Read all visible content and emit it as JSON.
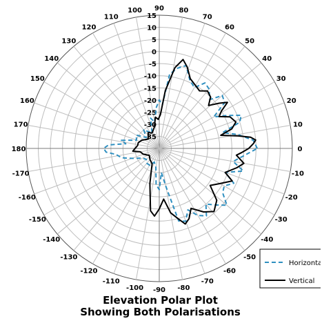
{
  "chart_data": {
    "type": "polar-line",
    "title": "Elevation Polar Plot",
    "subtitle": "Showing Both Polarisations",
    "angle_unit": "degrees",
    "radial_axis": {
      "min": -40,
      "max": 15,
      "step": 5,
      "tick_labels": [
        "15",
        "10",
        "5",
        "0",
        "-5",
        "-10",
        "-15",
        "-20",
        "-25",
        "-30",
        "-35"
      ]
    },
    "angle_axis": {
      "tick_labels": [
        "90",
        "80",
        "70",
        "60",
        "50",
        "40",
        "30",
        "20",
        "10",
        "0",
        "-10",
        "-20",
        "-30",
        "-40",
        "-50",
        "-60",
        "-70",
        "-80",
        "-90",
        "-100",
        "-110",
        "-120",
        "-130",
        "-140",
        "-150",
        "-160",
        "-170",
        "180",
        "170",
        "160",
        "150",
        "140",
        "130",
        "120",
        "110",
        "100"
      ]
    },
    "grid": true,
    "legend_position": "bottom-right",
    "series": [
      {
        "name": "Horizontal",
        "color": "#2e8fc0",
        "style": "dashed",
        "points": [
          [
            0,
            0.5
          ],
          [
            5,
            -1
          ],
          [
            10,
            -7
          ],
          [
            14,
            -13
          ],
          [
            18,
            -5
          ],
          [
            22,
            -3.5
          ],
          [
            26,
            -9
          ],
          [
            30,
            -14
          ],
          [
            35,
            -7
          ],
          [
            40,
            -6
          ],
          [
            44,
            -11
          ],
          [
            50,
            -8
          ],
          [
            55,
            -7
          ],
          [
            60,
            -11
          ],
          [
            66,
            -9
          ],
          [
            72,
            -4
          ],
          [
            77,
            -6
          ],
          [
            82,
            -9
          ],
          [
            86,
            -22
          ],
          [
            90,
            -20
          ],
          [
            94,
            -23
          ],
          [
            100,
            -29
          ],
          [
            106,
            -27
          ],
          [
            115,
            -33
          ],
          [
            130,
            -30
          ],
          [
            140,
            -33
          ],
          [
            150,
            -29
          ],
          [
            160,
            -30
          ],
          [
            168,
            -24
          ],
          [
            172,
            -26
          ],
          [
            176,
            -19
          ],
          [
            180,
            -17
          ],
          [
            184,
            -18
          ],
          [
            188,
            -22
          ],
          [
            194,
            -24
          ],
          [
            200,
            -28
          ],
          [
            210,
            -32
          ],
          [
            220,
            -33
          ],
          [
            230,
            -32
          ],
          [
            240,
            -32
          ],
          [
            250,
            -34
          ],
          [
            260,
            -32
          ],
          [
            265,
            -25
          ],
          [
            270,
            -23
          ],
          [
            275,
            -30
          ],
          [
            280,
            -24
          ],
          [
            285,
            -9
          ],
          [
            290,
            -8
          ],
          [
            295,
            -12
          ],
          [
            300,
            -8
          ],
          [
            305,
            -6
          ],
          [
            310,
            -10
          ],
          [
            315,
            -7
          ],
          [
            320,
            -3.5
          ],
          [
            325,
            -8
          ],
          [
            330,
            -9
          ],
          [
            335,
            -6
          ],
          [
            340,
            -11
          ],
          [
            345,
            -4
          ],
          [
            350,
            -9
          ],
          [
            355,
            -5
          ],
          [
            360,
            0.5
          ]
        ]
      },
      {
        "name": "Vertical",
        "color": "#000000",
        "style": "solid",
        "points": [
          [
            0,
            -3
          ],
          [
            3,
            -1
          ],
          [
            5,
            0
          ],
          [
            7,
            -2
          ],
          [
            9,
            -7
          ],
          [
            12,
            -14
          ],
          [
            15,
            -9
          ],
          [
            19,
            -6.5
          ],
          [
            24,
            -8
          ],
          [
            28,
            -12
          ],
          [
            31,
            -10
          ],
          [
            34,
            -6
          ],
          [
            37,
            -9
          ],
          [
            41,
            -13
          ],
          [
            45,
            -10
          ],
          [
            50,
            -9
          ],
          [
            55,
            -11
          ],
          [
            60,
            -10
          ],
          [
            66,
            -8.5
          ],
          [
            71,
            -4.5
          ],
          [
            75,
            -2
          ],
          [
            79,
            -6
          ],
          [
            84,
            -16
          ],
          [
            88,
            -26
          ],
          [
            92,
            -28
          ],
          [
            97,
            -27
          ],
          [
            103,
            -31
          ],
          [
            115,
            -33
          ],
          [
            125,
            -32
          ],
          [
            140,
            -34
          ],
          [
            155,
            -32
          ],
          [
            165,
            -31
          ],
          [
            172,
            -31
          ],
          [
            180,
            -30
          ],
          [
            186,
            -29
          ],
          [
            190,
            -32
          ],
          [
            200,
            -33
          ],
          [
            215,
            -35
          ],
          [
            230,
            -34
          ],
          [
            245,
            -33
          ],
          [
            255,
            -25
          ],
          [
            262,
            -14
          ],
          [
            266,
            -12
          ],
          [
            270,
            -15
          ],
          [
            275,
            -19
          ],
          [
            280,
            -13
          ],
          [
            285,
            -10
          ],
          [
            289,
            -7
          ],
          [
            293,
            -8.5
          ],
          [
            298,
            -12
          ],
          [
            305,
            -8
          ],
          [
            311,
            -5.5
          ],
          [
            318,
            -8
          ],
          [
            324,
            -14
          ],
          [
            330,
            -11
          ],
          [
            336,
            -7
          ],
          [
            340,
            -11
          ],
          [
            346,
            -7
          ],
          [
            350,
            -4.5
          ],
          [
            355,
            -8
          ],
          [
            357,
            -6
          ],
          [
            360,
            -3
          ]
        ]
      }
    ]
  }
}
